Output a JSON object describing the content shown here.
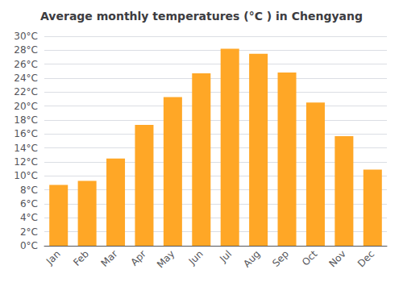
{
  "chart_data": {
    "type": "bar",
    "title": "Average monthly temperatures (°C ) in Chengyang",
    "categories": [
      "Jan",
      "Feb",
      "Mar",
      "Apr",
      "May",
      "Jun",
      "Jul",
      "Aug",
      "Sep",
      "Oct",
      "Nov",
      "Dec"
    ],
    "values": [
      8.7,
      9.3,
      12.5,
      17.3,
      21.3,
      24.7,
      28.2,
      27.5,
      24.8,
      20.5,
      15.7,
      10.9
    ],
    "color": "#FFA726",
    "ylim": [
      0,
      30
    ],
    "yticks": [
      {
        "value": 0,
        "label": "0°C"
      },
      {
        "value": 2,
        "label": "2°C"
      },
      {
        "value": 4,
        "label": "4°C"
      },
      {
        "value": 6,
        "label": "6°C"
      },
      {
        "value": 8,
        "label": "8°C"
      },
      {
        "value": 10,
        "label": "10°C"
      },
      {
        "value": 12,
        "label": "12°C"
      },
      {
        "value": 14,
        "label": "14°C"
      },
      {
        "value": 16,
        "label": "16°C"
      },
      {
        "value": 18,
        "label": "18°C"
      },
      {
        "value": 20,
        "label": "20°C"
      },
      {
        "value": 22,
        "label": "22°C"
      },
      {
        "value": 24,
        "label": "24°C"
      },
      {
        "value": 26,
        "label": "26°C"
      },
      {
        "value": 28,
        "label": "28°C"
      },
      {
        "value": 30,
        "label": "30°C"
      }
    ],
    "grid": true
  }
}
